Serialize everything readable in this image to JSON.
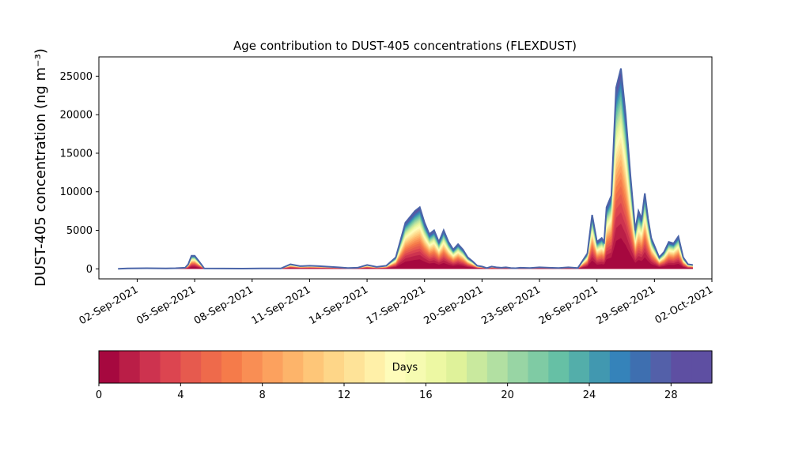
{
  "chart_data": {
    "type": "area",
    "title": "Age contribution to DUST-405 concentrations (FLEXDUST)",
    "ylabel": "DUST-405 concentration (ng m⁻³)",
    "xlabel": "",
    "stacking": "cumulative by particle age (days)",
    "x_start": "2021-08-31",
    "x_end": "2021-10-02",
    "data_start": "2021-09-01",
    "data_end": "2021-10-01",
    "ylim": [
      -1300,
      27500
    ],
    "y_ticks": [
      0,
      5000,
      10000,
      15000,
      20000,
      25000
    ],
    "x_ticks": [
      {
        "date": "2021-09-02",
        "label": "02-Sep-2021"
      },
      {
        "date": "2021-09-05",
        "label": "05-Sep-2021"
      },
      {
        "date": "2021-09-08",
        "label": "08-Sep-2021"
      },
      {
        "date": "2021-09-11",
        "label": "11-Sep-2021"
      },
      {
        "date": "2021-09-14",
        "label": "14-Sep-2021"
      },
      {
        "date": "2021-09-17",
        "label": "17-Sep-2021"
      },
      {
        "date": "2021-09-20",
        "label": "20-Sep-2021"
      },
      {
        "date": "2021-09-23",
        "label": "23-Sep-2021"
      },
      {
        "date": "2021-09-26",
        "label": "26-Sep-2021"
      },
      {
        "date": "2021-09-29",
        "label": "29-Sep-2021"
      },
      {
        "date": "2021-10-02",
        "label": "02-Oct-2021"
      }
    ],
    "total": {
      "x": [
        "2021-09-01 00:00",
        "2021-09-01 12:00",
        "2021-09-02 12:00",
        "2021-09-03 12:00",
        "2021-09-04 00:00",
        "2021-09-04 12:00",
        "2021-09-04 16:00",
        "2021-09-04 20:00",
        "2021-09-05 00:00",
        "2021-09-05 06:00",
        "2021-09-05 12:00",
        "2021-09-06 12:00",
        "2021-09-07 12:00",
        "2021-09-08 12:00",
        "2021-09-09 12:00",
        "2021-09-10 00:00",
        "2021-09-10 12:00",
        "2021-09-11 00:00",
        "2021-09-11 12:00",
        "2021-09-12 12:00",
        "2021-09-13 00:00",
        "2021-09-13 12:00",
        "2021-09-14 00:00",
        "2021-09-14 12:00",
        "2021-09-15 00:00",
        "2021-09-15 12:00",
        "2021-09-16 00:00",
        "2021-09-16 12:00",
        "2021-09-16 18:00",
        "2021-09-17 00:00",
        "2021-09-17 06:00",
        "2021-09-17 12:00",
        "2021-09-17 18:00",
        "2021-09-18 00:00",
        "2021-09-18 06:00",
        "2021-09-18 12:00",
        "2021-09-18 18:00",
        "2021-09-19 00:00",
        "2021-09-19 06:00",
        "2021-09-19 12:00",
        "2021-09-19 18:00",
        "2021-09-20 00:00",
        "2021-09-20 06:00",
        "2021-09-20 12:00",
        "2021-09-20 18:00",
        "2021-09-21 00:00",
        "2021-09-21 06:00",
        "2021-09-21 12:00",
        "2021-09-21 18:00",
        "2021-09-22 00:00",
        "2021-09-22 12:00",
        "2021-09-23 00:00",
        "2021-09-23 12:00",
        "2021-09-24 00:00",
        "2021-09-24 12:00",
        "2021-09-25 00:00",
        "2021-09-25 12:00",
        "2021-09-25 18:00",
        "2021-09-26 00:00",
        "2021-09-26 06:00",
        "2021-09-26 09:00",
        "2021-09-26 12:00",
        "2021-09-26 18:00",
        "2021-09-27 00:00",
        "2021-09-27 06:00",
        "2021-09-27 12:00",
        "2021-09-27 18:00",
        "2021-09-28 00:00",
        "2021-09-28 04:00",
        "2021-09-28 08:00",
        "2021-09-28 12:00",
        "2021-09-28 16:00",
        "2021-09-28 20:00",
        "2021-09-29 00:00",
        "2021-09-29 06:00",
        "2021-09-29 12:00",
        "2021-09-29 18:00",
        "2021-09-30 00:00",
        "2021-09-30 06:00",
        "2021-09-30 12:00",
        "2021-09-30 18:00",
        "2021-10-01 00:00"
      ],
      "y": [
        0,
        60,
        80,
        50,
        80,
        150,
        600,
        1700,
        1700,
        900,
        50,
        40,
        30,
        60,
        50,
        600,
        350,
        400,
        350,
        200,
        100,
        150,
        500,
        250,
        400,
        1500,
        6000,
        7500,
        8000,
        6000,
        4500,
        5000,
        3500,
        5000,
        3500,
        2500,
        3200,
        2500,
        1500,
        1000,
        400,
        300,
        100,
        300,
        200,
        150,
        200,
        100,
        80,
        150,
        100,
        200,
        150,
        100,
        200,
        100,
        2000,
        7000,
        3500,
        4000,
        3500,
        8000,
        9500,
        23500,
        26000,
        20000,
        12000,
        5000,
        7500,
        6500,
        9800,
        6500,
        4000,
        3000,
        1500,
        2200,
        3500,
        3300,
        4200,
        1500,
        600,
        500
      ]
    },
    "colorbar": {
      "label": "Days",
      "min": 0,
      "max": 30,
      "ticks": [
        0,
        4,
        8,
        12,
        16,
        20,
        24,
        28
      ],
      "colormap": "Spectral",
      "colors": [
        "#a6083f",
        "#ba1e47",
        "#cd334f",
        "#dc4550",
        "#e65a4e",
        "#ee6a4b",
        "#f57b4a",
        "#f98e54",
        "#fca15e",
        "#fdb46a",
        "#fec678",
        "#fed688",
        "#fee398",
        "#fff0a8",
        "#fefcba",
        "#f6fbb1",
        "#edf8a3",
        "#dff29a",
        "#c9e99e",
        "#b2e0a2",
        "#98d5a4",
        "#7fcba4",
        "#66c0a5",
        "#53aeaa",
        "#4198b0",
        "#3583ba",
        "#3e6fb0",
        "#5360a9",
        "#5e4fa2",
        "#5e4fa2"
      ]
    }
  }
}
